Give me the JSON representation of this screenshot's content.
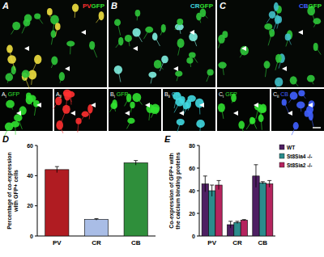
{
  "chart_data": [
    {
      "type": "bar",
      "title": "D",
      "y_label": [
        "Percentage of co-expression",
        "with GFP+ cells"
      ],
      "categories": [
        "PV",
        "CR",
        "CB"
      ],
      "values": [
        44,
        11,
        48.5
      ],
      "errors": [
        2,
        0.5,
        1.5
      ],
      "colors": [
        "#b01c22",
        "#a9bde6",
        "#2f8f3b"
      ],
      "ylim": [
        0,
        60
      ],
      "yticks": [
        0,
        20,
        40,
        60
      ],
      "grid": false
    },
    {
      "type": "bar",
      "title": "E",
      "y_label": [
        "Co-expression of GFP+ with",
        "the calcium binding proteins"
      ],
      "categories": [
        "PV",
        "CR",
        "CB"
      ],
      "series": [
        {
          "name": "WT",
          "color": "#4e1f62",
          "values": [
            46,
            10,
            53
          ],
          "errors": [
            7,
            3,
            10
          ]
        },
        {
          "name": "St8Sia4 -/-",
          "color": "#2b8c8c",
          "values": [
            40,
            12,
            47
          ],
          "errors": [
            5,
            1,
            1
          ]
        },
        {
          "name": "St8Sia2 -/-",
          "color": "#b5245e",
          "values": [
            45,
            14,
            46
          ],
          "errors": [
            4,
            0.5,
            3
          ]
        }
      ],
      "ylim": [
        0,
        80
      ],
      "yticks": [
        0,
        20,
        40,
        60,
        80
      ],
      "grid": false,
      "legend": "upper right"
    }
  ],
  "panels": [
    {
      "label": "A",
      "markers": [
        {
          "text": "PV",
          "color": "#ff3030"
        },
        {
          "text": "GFP",
          "color": "#30e030"
        }
      ],
      "insets": [
        {
          "label": "A",
          "sub": "i",
          "marker": "GFP",
          "color": "#30e030"
        },
        {
          "label": "A",
          "sub": "ii",
          "marker": "PV",
          "color": "#ff3030"
        }
      ]
    },
    {
      "label": "B",
      "markers": [
        {
          "text": "CR",
          "color": "#40d8e0"
        },
        {
          "text": "GFP",
          "color": "#30e030"
        }
      ],
      "insets": [
        {
          "label": "B",
          "sub": "i",
          "marker": "GFP",
          "color": "#30e030"
        },
        {
          "label": "B",
          "sub": "ii",
          "marker": "CR",
          "color": "#40d8e0"
        }
      ]
    },
    {
      "label": "C",
      "markers": [
        {
          "text": "CB",
          "color": "#4060ff"
        },
        {
          "text": "GFP",
          "color": "#30e030"
        }
      ],
      "insets": [
        {
          "label": "C",
          "sub": "i",
          "marker": "GFP",
          "color": "#30e030"
        },
        {
          "label": "C",
          "sub": "ii",
          "marker": "CB",
          "color": "#4060ff"
        }
      ]
    }
  ]
}
